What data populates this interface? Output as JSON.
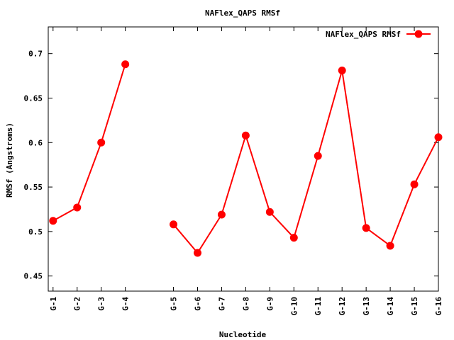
{
  "chart_data": {
    "type": "line",
    "title": "NAFlex_QAPS RMSf",
    "xlabel": "Nucleotide",
    "ylabel": "RMSf (Angstroms)",
    "ylim": [
      0.433,
      0.73
    ],
    "yticks": [
      0.45,
      0.5,
      0.55,
      0.6,
      0.65,
      0.7
    ],
    "ytick_labels": [
      "0.45",
      "0.5",
      "0.55",
      "0.6",
      "0.65",
      "0.7"
    ],
    "xlim": [
      0.8,
      17
    ],
    "categories": [
      "G-1",
      "G-2",
      "G-3",
      "G-4",
      "G-5",
      "G-6",
      "G-7",
      "G-8",
      "G-9",
      "G-10",
      "G-11",
      "G-12",
      "G-13",
      "G-14",
      "G-15",
      "G-16"
    ],
    "x": [
      1,
      2,
      3,
      4,
      6,
      7,
      8,
      9,
      10,
      11,
      12,
      13,
      14,
      15,
      16,
      17
    ],
    "segments": [
      [
        0,
        3
      ],
      [
        4,
        15
      ]
    ],
    "legend_position": "top-right",
    "grid": false,
    "series": [
      {
        "name": "NAFlex_QAPS RMSf",
        "color": "#ff0000",
        "values": [
          0.512,
          0.527,
          0.6,
          0.688,
          0.508,
          0.476,
          0.519,
          0.608,
          0.522,
          0.493,
          0.585,
          0.681,
          0.504,
          0.484,
          0.553,
          0.606
        ]
      }
    ]
  }
}
